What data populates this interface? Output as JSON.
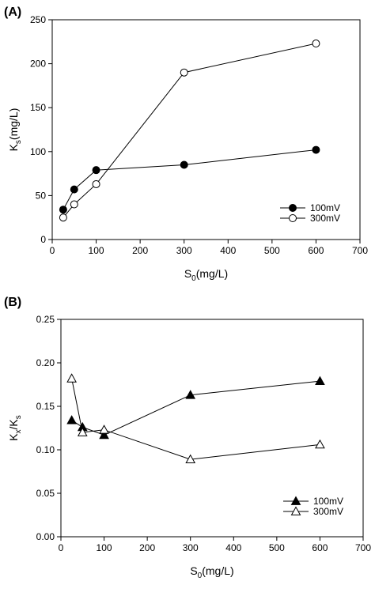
{
  "chart_data": [
    {
      "type": "line",
      "panel_label": "(A)",
      "xlabel": "S",
      "xlabel_sub": "0",
      "xlabel_rest": "(mg/L)",
      "ylabel": "K",
      "ylabel_sub": "s",
      "ylabel_rest": "(mg/L)",
      "xlim": [
        0,
        700
      ],
      "ylim": [
        0,
        250
      ],
      "xticks": [
        0,
        100,
        200,
        300,
        400,
        500,
        600,
        700
      ],
      "yticks": [
        0,
        50,
        100,
        150,
        200,
        250
      ],
      "legend_position": "bottom-right",
      "grid": false,
      "series": [
        {
          "name": "100mV",
          "marker": "filled-circle",
          "color": "#000000",
          "x": [
            25,
            50,
            100,
            300,
            600
          ],
          "y": [
            34,
            57,
            79,
            85,
            102
          ]
        },
        {
          "name": "300mV",
          "marker": "open-circle",
          "color": "#000000",
          "x": [
            25,
            50,
            100,
            300,
            600
          ],
          "y": [
            25,
            40,
            63,
            190,
            223
          ]
        }
      ]
    },
    {
      "type": "line",
      "panel_label": "(B)",
      "xlabel": "S",
      "xlabel_sub": "0",
      "xlabel_rest": "(mg/L)",
      "ylabel": "K",
      "ylabel_sub": "x",
      "ylabel_mid": "/K",
      "ylabel_sub2": "s",
      "xlim": [
        0,
        700
      ],
      "ylim": [
        0,
        0.25
      ],
      "xticks": [
        0,
        100,
        200,
        300,
        400,
        500,
        600,
        700
      ],
      "yticks": [
        0.0,
        0.05,
        0.1,
        0.15,
        0.2,
        0.25
      ],
      "ytick_labels": [
        "0.00",
        "0.05",
        "0.10",
        "0.15",
        "0.20",
        "0.25"
      ],
      "legend_position": "bottom-right",
      "grid": false,
      "series": [
        {
          "name": "100mV",
          "marker": "filled-triangle",
          "color": "#000000",
          "x": [
            25,
            50,
            100,
            300,
            600
          ],
          "y": [
            0.134,
            0.126,
            0.117,
            0.163,
            0.179
          ]
        },
        {
          "name": "300mV",
          "marker": "open-triangle",
          "color": "#000000",
          "x": [
            25,
            50,
            100,
            300,
            600
          ],
          "y": [
            0.182,
            0.12,
            0.123,
            0.089,
            0.106
          ]
        }
      ]
    }
  ]
}
